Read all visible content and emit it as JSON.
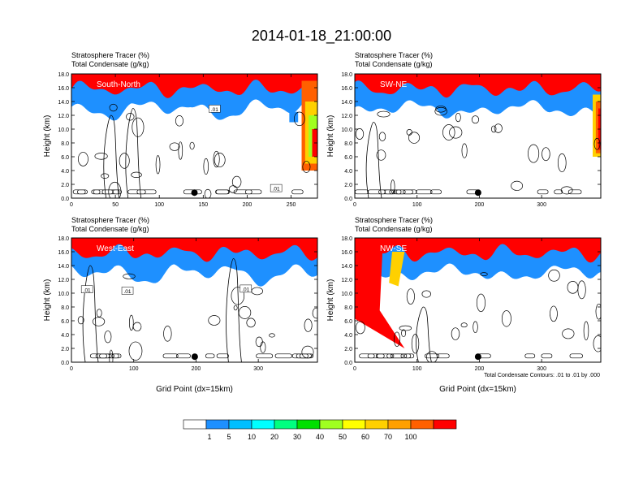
{
  "title": "2014-01-18_21:00:00",
  "chart_data": [
    {
      "type": "heatmap",
      "panel": "top-left",
      "label": "South-North",
      "header": [
        "Stratosphere Tracer   (%)",
        "Total Condensate   (g/kg)"
      ],
      "ylabel": "Height (km)",
      "xlabel": "",
      "xlim": [
        0,
        280
      ],
      "ylim": [
        0,
        18
      ],
      "xticks": [
        0,
        50,
        100,
        150,
        200,
        250
      ],
      "yticks": [
        0,
        2,
        4,
        6,
        8,
        10,
        12,
        14,
        16,
        18
      ],
      "contour_labels": [
        ".01",
        ".01"
      ],
      "marker_x": 140
    },
    {
      "type": "heatmap",
      "panel": "top-right",
      "label": "SW-NE",
      "header": [
        "Stratosphere Tracer   (%)",
        "Total Condensate   (g/kg)"
      ],
      "ylabel": "Height (km)",
      "xlabel": "",
      "xlim": [
        0,
        395
      ],
      "ylim": [
        0,
        18
      ],
      "xticks": [
        0,
        100,
        200,
        300
      ],
      "yticks": [
        0,
        2,
        4,
        6,
        8,
        10,
        12,
        14,
        16,
        18
      ],
      "contour_labels": [],
      "marker_x": 198
    },
    {
      "type": "heatmap",
      "panel": "bottom-left",
      "label": "West-East",
      "header": [
        "Stratosphere Tracer   (%)",
        "Total Condensate   (g/kg)"
      ],
      "ylabel": "Height (km)",
      "xlabel": "Grid Point (dx=15km)",
      "xlim": [
        0,
        395
      ],
      "ylim": [
        0,
        18
      ],
      "xticks": [
        0,
        100,
        200,
        300
      ],
      "yticks": [
        0,
        2,
        4,
        6,
        8,
        10,
        12,
        14,
        16,
        18
      ],
      "contour_labels": [
        ".01",
        ".01",
        ".01"
      ],
      "marker_x": 198
    },
    {
      "type": "heatmap",
      "panel": "bottom-right",
      "label": "NW-SE",
      "header": [
        "Stratosphere Tracer   (%)",
        "Total Condensate   (g/kg)"
      ],
      "ylabel": "Height (km)",
      "xlabel": "Grid Point (dx=15km)",
      "xlim": [
        0,
        395
      ],
      "ylim": [
        0,
        18
      ],
      "xticks": [
        0,
        100,
        200,
        300
      ],
      "yticks": [
        0,
        2,
        4,
        6,
        8,
        10,
        12,
        14,
        16,
        18
      ],
      "contour_labels": [],
      "marker_x": 198,
      "contour_note": "Total Condensate Contours: .01 to .01 by .000"
    }
  ],
  "colorbar": {
    "labels": [
      "1",
      "5",
      "10",
      "20",
      "30",
      "40",
      "50",
      "60",
      "70",
      "100"
    ],
    "colors": [
      "#ffffff",
      "#1e90ff",
      "#00bfff",
      "#00ffff",
      "#00ff80",
      "#00e000",
      "#a0ff20",
      "#ffff00",
      "#ffd000",
      "#ffa000",
      "#ff6000",
      "#ff0000"
    ]
  }
}
